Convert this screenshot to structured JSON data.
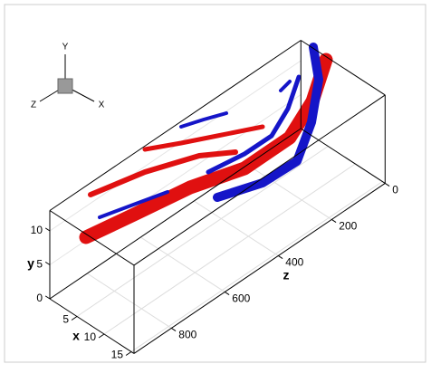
{
  "chart_data": {
    "type": "isosurface3d",
    "xlabel": "x",
    "ylabel": "y",
    "zlabel": "z",
    "xlim": [
      0,
      15.5
    ],
    "ylim": [
      0,
      13
    ],
    "zlim": [
      0,
      940
    ],
    "xticks": [
      5,
      10,
      15
    ],
    "yticks": [
      0,
      5,
      10
    ],
    "zticks": [
      0,
      200,
      400,
      600,
      800
    ],
    "grid": true
  },
  "orientation_axes": {
    "x": "X",
    "y": "Y",
    "z": "Z"
  }
}
